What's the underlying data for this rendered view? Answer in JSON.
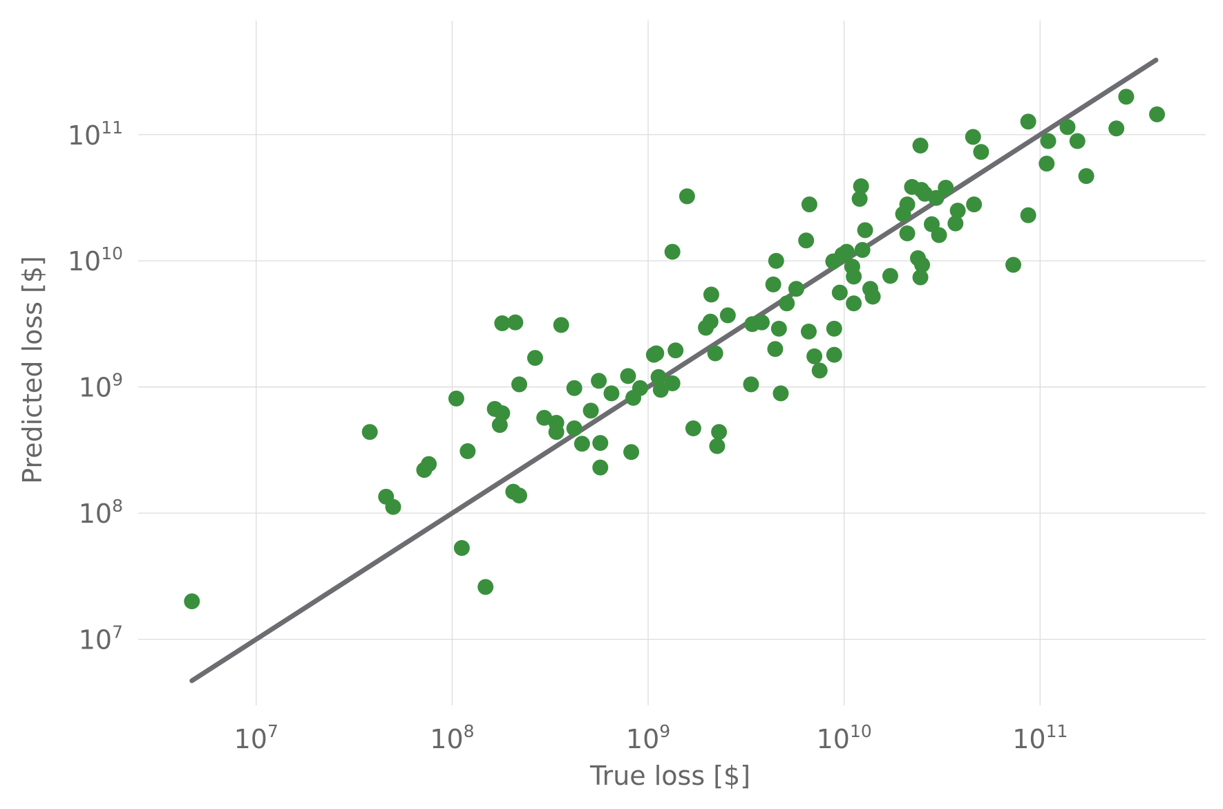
{
  "chart_data": {
    "type": "scatter",
    "xlabel": "True loss [$]",
    "ylabel": "Predicted loss [$]",
    "x_scale": "log",
    "y_scale": "log",
    "xlim": [
      2500000.0,
      700000000000.0
    ],
    "ylim": [
      3000000.0,
      800000000000.0
    ],
    "x_ticks": [
      {
        "value": 10000000.0,
        "base": "10",
        "exp": "7"
      },
      {
        "value": 100000000.0,
        "base": "10",
        "exp": "8"
      },
      {
        "value": 1000000000.0,
        "base": "10",
        "exp": "9"
      },
      {
        "value": 10000000000.0,
        "base": "10",
        "exp": "10"
      },
      {
        "value": 100000000000.0,
        "base": "10",
        "exp": "11"
      }
    ],
    "y_ticks": [
      {
        "value": 10000000.0,
        "base": "10",
        "exp": "7"
      },
      {
        "value": 100000000.0,
        "base": "10",
        "exp": "8"
      },
      {
        "value": 1000000000.0,
        "base": "10",
        "exp": "9"
      },
      {
        "value": 10000000000.0,
        "base": "10",
        "exp": "10"
      },
      {
        "value": 100000000000.0,
        "base": "10",
        "exp": "11"
      }
    ],
    "grid": true,
    "point_color": "#3a8f3d",
    "reference_line": {
      "x": [
        4700000.0,
        390000000000.0
      ],
      "y": [
        4700000.0,
        390000000000.0
      ],
      "color": "#6c6d70"
    },
    "points": [
      [
        4700000.0,
        20000000.0
      ],
      [
        38000000.0,
        440000000.0
      ],
      [
        46000000.0,
        135000000.0
      ],
      [
        50000000.0,
        112000000.0
      ],
      [
        72000000.0,
        220000000.0
      ],
      [
        76000000.0,
        245000000.0
      ],
      [
        105000000.0,
        810000000.0
      ],
      [
        120000000.0,
        310000000.0
      ],
      [
        112000000.0,
        53000000.0
      ],
      [
        148000000.0,
        26000000.0
      ],
      [
        165000000.0,
        670000000.0
      ],
      [
        180000000.0,
        620000000.0
      ],
      [
        175000000.0,
        500000000.0
      ],
      [
        180000000.0,
        3200000000.0
      ],
      [
        210000000.0,
        3250000000.0
      ],
      [
        205000000.0,
        148000000.0
      ],
      [
        220000000.0,
        138000000.0
      ],
      [
        220000000.0,
        1050000000.0
      ],
      [
        265000000.0,
        1700000000.0
      ],
      [
        295000000.0,
        570000000.0
      ],
      [
        340000000.0,
        520000000.0
      ],
      [
        340000000.0,
        440000000.0
      ],
      [
        360000000.0,
        3100000000.0
      ],
      [
        420000000.0,
        980000000.0
      ],
      [
        420000000.0,
        470000000.0
      ],
      [
        460000000.0,
        355000000.0
      ],
      [
        510000000.0,
        650000000.0
      ],
      [
        560000000.0,
        1120000000.0
      ],
      [
        570000000.0,
        360000000.0
      ],
      [
        570000000.0,
        230000000.0
      ],
      [
        650000000.0,
        890000000.0
      ],
      [
        790000000.0,
        1220000000.0
      ],
      [
        840000000.0,
        820000000.0
      ],
      [
        820000000.0,
        305000000.0
      ],
      [
        910000000.0,
        980000000.0
      ],
      [
        1070000000.0,
        1800000000.0
      ],
      [
        1100000000.0,
        1850000000.0
      ],
      [
        1130000000.0,
        1200000000.0
      ],
      [
        1160000000.0,
        950000000.0
      ],
      [
        1330000000.0,
        1070000000.0
      ],
      [
        1380000000.0,
        1950000000.0
      ],
      [
        1330000000.0,
        11800000000.0
      ],
      [
        1580000000.0,
        32500000000.0
      ],
      [
        1700000000.0,
        470000000.0
      ],
      [
        1970000000.0,
        2950000000.0
      ],
      [
        2080000000.0,
        3300000000.0
      ],
      [
        2100000000.0,
        5400000000.0
      ],
      [
        2200000000.0,
        1850000000.0
      ],
      [
        2300000000.0,
        440000000.0
      ],
      [
        2250000000.0,
        340000000.0
      ],
      [
        2550000000.0,
        3700000000.0
      ],
      [
        3350000000.0,
        1050000000.0
      ],
      [
        3400000000.0,
        3150000000.0
      ],
      [
        3800000000.0,
        3250000000.0
      ],
      [
        4350000000.0,
        6500000000.0
      ],
      [
        4500000000.0,
        10000000000.0
      ],
      [
        4450000000.0,
        2000000000.0
      ],
      [
        4650000000.0,
        2900000000.0
      ],
      [
        4750000000.0,
        890000000.0
      ],
      [
        5100000000.0,
        4600000000.0
      ],
      [
        5700000000.0,
        6000000000.0
      ],
      [
        6400000000.0,
        14500000000.0
      ],
      [
        6650000000.0,
        28000000000.0
      ],
      [
        6600000000.0,
        2750000000.0
      ],
      [
        7050000000.0,
        1750000000.0
      ],
      [
        7500000000.0,
        1350000000.0
      ],
      [
        8800000000.0,
        9900000000.0
      ],
      [
        8900000000.0,
        2900000000.0
      ],
      [
        8900000000.0,
        1800000000.0
      ],
      [
        9500000000.0,
        5600000000.0
      ],
      [
        9800000000.0,
        11200000000.0
      ],
      [
        10300000000.0,
        11800000000.0
      ],
      [
        11000000000.0,
        9000000000.0
      ],
      [
        11200000000.0,
        7500000000.0
      ],
      [
        11200000000.0,
        4600000000.0
      ],
      [
        12000000000.0,
        31000000000.0
      ],
      [
        12200000000.0,
        39000000000.0
      ],
      [
        12400000000.0,
        12200000000.0
      ],
      [
        12800000000.0,
        17500000000.0
      ],
      [
        13600000000.0,
        6000000000.0
      ],
      [
        14000000000.0,
        5200000000.0
      ],
      [
        17200000000.0,
        7600000000.0
      ],
      [
        20000000000.0,
        23500000000.0
      ],
      [
        21000000000.0,
        28000000000.0
      ],
      [
        21000000000.0,
        16500000000.0
      ],
      [
        22200000000.0,
        38500000000.0
      ],
      [
        23800000000.0,
        10500000000.0
      ],
      [
        24500000000.0,
        82000000000.0
      ],
      [
        24500000000.0,
        7400000000.0
      ],
      [
        25000000000.0,
        9300000000.0
      ],
      [
        24800000000.0,
        36500000000.0
      ],
      [
        25800000000.0,
        34000000000.0
      ],
      [
        28000000000.0,
        19500000000.0
      ],
      [
        29500000000.0,
        31500000000.0
      ],
      [
        30500000000.0,
        16000000000.0
      ],
      [
        33000000000.0,
        38000000000.0
      ],
      [
        37000000000.0,
        19800000000.0
      ],
      [
        38000000000.0,
        25000000000.0
      ],
      [
        45500000000.0,
        96000000000.0
      ],
      [
        46000000000.0,
        28000000000.0
      ],
      [
        50000000000.0,
        73000000000.0
      ],
      [
        73000000000.0,
        9300000000.0
      ],
      [
        87000000000.0,
        127000000000.0
      ],
      [
        87000000000.0,
        23000000000.0
      ],
      [
        108000000000.0,
        59000000000.0
      ],
      [
        110000000000.0,
        89000000000.0
      ],
      [
        138000000000.0,
        115000000000.0
      ],
      [
        155000000000.0,
        89000000000.0
      ],
      [
        172000000000.0,
        47000000000.0
      ],
      [
        245000000000.0,
        112000000000.0
      ],
      [
        275000000000.0,
        200000000000.0
      ],
      [
        395000000000.0,
        145000000000.0
      ]
    ]
  }
}
